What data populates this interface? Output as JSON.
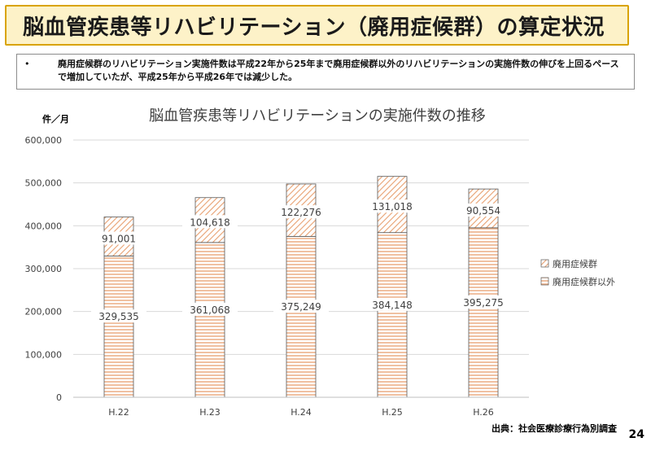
{
  "header": {
    "title": "脳血管疾患等リハビリテーション（廃用症候群）の算定状況"
  },
  "note": {
    "bullet": "•",
    "text": "廃用症候群のリハビリテーション実施件数は平成22年から25年まで廃用症候群以外のリハビリテーションの実施件数の伸びを上回るペースで増加していたが、平成25年から平成26年では減少した。"
  },
  "chart_data": {
    "type": "bar",
    "stacked": true,
    "title": "脳血管疾患等リハビリテーションの実施件数の推移",
    "ylabel": "件／月",
    "xlabel": "",
    "categories": [
      "H.22",
      "H.23",
      "H.24",
      "H.25",
      "H.26"
    ],
    "ylim": [
      0,
      600000
    ],
    "yticks": [
      0,
      100000,
      200000,
      300000,
      400000,
      500000,
      600000
    ],
    "ytick_labels": [
      "0",
      "100,000",
      "200,000",
      "300,000",
      "400,000",
      "500,000",
      "600,000"
    ],
    "grid": true,
    "legend_position": "right",
    "series": [
      {
        "name": "廃用症候群以外",
        "values": [
          329535,
          361068,
          375249,
          384148,
          395275
        ],
        "labels": [
          "329,535",
          "361,068",
          "375,249",
          "384,148",
          "395,275"
        ],
        "color": "#e8a070",
        "pattern": "horizontal"
      },
      {
        "name": "廃用症候群",
        "values": [
          91001,
          104618,
          122276,
          131018,
          90554
        ],
        "labels": [
          "91,001",
          "104,618",
          "122,276",
          "131,018",
          "90,554"
        ],
        "color": "#e8a070",
        "pattern": "diagonal"
      }
    ]
  },
  "footer": {
    "source": "出典：社会医療診療行為別調査",
    "page": "24"
  }
}
